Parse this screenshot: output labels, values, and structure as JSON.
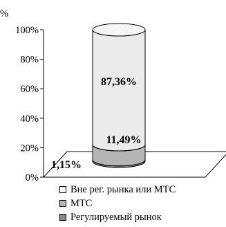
{
  "chart_data": {
    "type": "stacked-bar-3d",
    "y_unit_label": "%",
    "ylim": [
      0,
      100
    ],
    "y_ticks": [
      "0%",
      "20%",
      "40%",
      "60%",
      "80%",
      "100%"
    ],
    "grid": false,
    "legend_position": "bottom",
    "series": [
      {
        "name": "Регулируемый рынок",
        "value": 1.15,
        "label": "1,15%",
        "color": "#8a8a8a"
      },
      {
        "name": "МТС",
        "value": 11.49,
        "label": "11,49%",
        "color": "#b5b5b5"
      },
      {
        "name": "Вне рег. рынка или МТС",
        "value": 87.36,
        "label": "87,36%",
        "color": "#ebebeb"
      }
    ]
  }
}
